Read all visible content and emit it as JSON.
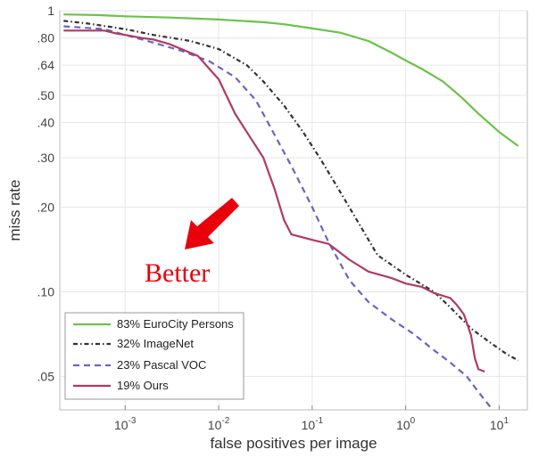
{
  "chart_data": {
    "type": "line",
    "xlabel": "false positives per image",
    "ylabel": "miss rate",
    "xscale": "log",
    "yscale": "log",
    "xlim": [
      0.0002,
      20
    ],
    "ylim": [
      0.038,
      1
    ],
    "x_ticks": [
      {
        "value": 0.001,
        "base": "10",
        "exp": "-3"
      },
      {
        "value": 0.01,
        "base": "10",
        "exp": "-2"
      },
      {
        "value": 0.1,
        "base": "10",
        "exp": "-1"
      },
      {
        "value": 1,
        "base": "10",
        "exp": "0"
      },
      {
        "value": 10,
        "base": "10",
        "exp": "1"
      }
    ],
    "y_ticks": [
      {
        "value": 1,
        "label": "1"
      },
      {
        "value": 0.8,
        "label": ".80"
      },
      {
        "value": 0.64,
        "label": ".64"
      },
      {
        "value": 0.5,
        "label": ".50"
      },
      {
        "value": 0.4,
        "label": ".40"
      },
      {
        "value": 0.3,
        "label": ".30"
      },
      {
        "value": 0.2,
        "label": ".20"
      },
      {
        "value": 0.1,
        "label": ".10"
      },
      {
        "value": 0.05,
        "label": ".05"
      }
    ],
    "legend_position": "bottom-left",
    "annotation": {
      "text": "Better",
      "color": "#e8000b"
    },
    "series": [
      {
        "name": "83% EuroCity Persons",
        "color": "#6cc24a",
        "dash": "solid",
        "x": [
          0.00022,
          0.0005,
          0.001,
          0.003,
          0.01,
          0.03,
          0.05,
          0.1,
          0.2,
          0.4,
          0.7,
          1.0,
          1.5,
          2.5,
          4,
          6,
          10,
          16
        ],
        "y": [
          0.97,
          0.965,
          0.955,
          0.945,
          0.93,
          0.91,
          0.895,
          0.865,
          0.835,
          0.78,
          0.71,
          0.665,
          0.62,
          0.56,
          0.49,
          0.43,
          0.37,
          0.33
        ]
      },
      {
        "name": "32% ImageNet",
        "color": "#333333",
        "dash": "dashdot",
        "x": [
          0.00022,
          0.0004,
          0.0008,
          0.0012,
          0.002,
          0.005,
          0.01,
          0.02,
          0.03,
          0.05,
          0.08,
          0.12,
          0.18,
          0.3,
          0.5,
          1.0,
          2.0,
          3.0,
          5.0,
          8.0,
          12,
          16
        ],
        "y": [
          0.92,
          0.9,
          0.87,
          0.85,
          0.82,
          0.78,
          0.73,
          0.64,
          0.56,
          0.46,
          0.37,
          0.3,
          0.24,
          0.18,
          0.135,
          0.115,
          0.1,
          0.088,
          0.074,
          0.066,
          0.06,
          0.057
        ]
      },
      {
        "name": "23% Pascal VOC",
        "color": "#6b63c8",
        "dash": "dashed",
        "x": [
          0.00022,
          0.0006,
          0.001,
          0.002,
          0.004,
          0.008,
          0.015,
          0.025,
          0.04,
          0.06,
          0.1,
          0.15,
          0.25,
          0.4,
          0.7,
          1.2,
          2.0,
          3.0,
          4.5,
          6.0,
          8.0
        ],
        "y": [
          0.88,
          0.86,
          0.82,
          0.77,
          0.72,
          0.66,
          0.58,
          0.48,
          0.36,
          0.28,
          0.2,
          0.15,
          0.11,
          0.092,
          0.08,
          0.071,
          0.062,
          0.056,
          0.05,
          0.044,
          0.039
        ]
      },
      {
        "name": "19% Ours",
        "color": "#b03a64",
        "dash": "solid",
        "x": [
          0.00022,
          0.0006,
          0.0008,
          0.001,
          0.0015,
          0.002,
          0.003,
          0.006,
          0.01,
          0.015,
          0.02,
          0.03,
          0.04,
          0.05,
          0.06,
          0.1,
          0.15,
          0.25,
          0.4,
          0.7,
          1.0,
          1.5,
          2.0,
          3.0,
          3.5,
          4.2,
          5.0,
          5.5,
          6.0,
          7.0
        ],
        "y": [
          0.85,
          0.85,
          0.83,
          0.82,
          0.8,
          0.79,
          0.76,
          0.69,
          0.57,
          0.43,
          0.37,
          0.3,
          0.23,
          0.18,
          0.16,
          0.153,
          0.148,
          0.13,
          0.118,
          0.112,
          0.107,
          0.104,
          0.099,
          0.095,
          0.09,
          0.083,
          0.07,
          0.058,
          0.053,
          0.052
        ]
      }
    ]
  }
}
